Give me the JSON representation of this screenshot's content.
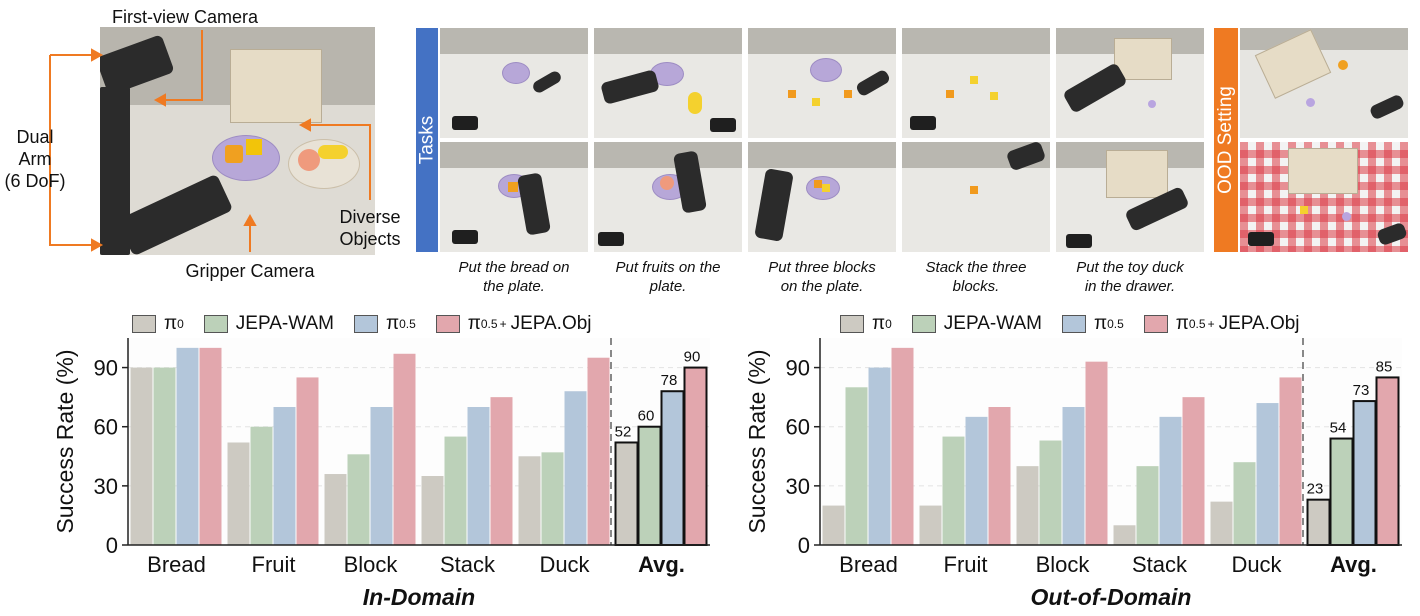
{
  "annotations": {
    "first_view": "First-view Camera",
    "dual_arm": [
      "Dual",
      "Arm",
      "(6 DoF)"
    ],
    "diverse": [
      "Diverse",
      "Objects"
    ],
    "gripper": "Gripper Camera"
  },
  "tags": {
    "tasks": "Tasks",
    "ood": "OOD Setting"
  },
  "captions": [
    [
      "Put the bread on",
      "the plate."
    ],
    [
      "Put fruits on the",
      "plate."
    ],
    [
      "Put three blocks",
      "on the plate."
    ],
    [
      "Stack the three",
      "blocks."
    ],
    [
      "Put the toy duck",
      "in the drawer."
    ]
  ],
  "legend": [
    {
      "label": "π",
      "sub": "0",
      "sup": "",
      "rest": "",
      "color": "#cdcac2"
    },
    {
      "label": "JEPA-WAM",
      "sub": "",
      "sup": "",
      "rest": "",
      "color": "#bcd1b9"
    },
    {
      "label": "π",
      "sub": "0.5",
      "sup": "",
      "rest": "",
      "color": "#b3c6da"
    },
    {
      "label": "π",
      "sub": "0.5",
      "sup": "+",
      "rest": "JEPA.Obj",
      "color": "#e2a7ad"
    }
  ],
  "chart_data": [
    {
      "type": "bar",
      "title": "In-Domain",
      "ylabel": "Success Rate (%)",
      "ylim": [
        0,
        105
      ],
      "yticks": [
        0,
        30,
        60,
        90
      ],
      "categories": [
        "Bread",
        "Fruit",
        "Block",
        "Stack",
        "Duck",
        "Avg."
      ],
      "series": [
        {
          "name": "π0",
          "color": "#cdcac2",
          "values": [
            90,
            52,
            36,
            35,
            45,
            52
          ]
        },
        {
          "name": "JEPA-WAM",
          "color": "#bcd1b9",
          "values": [
            90,
            60,
            46,
            55,
            47,
            60
          ]
        },
        {
          "name": "π0.5",
          "color": "#b3c6da",
          "values": [
            100,
            70,
            70,
            70,
            78,
            78
          ]
        },
        {
          "name": "π0.5 + JEPA.Obj",
          "color": "#e2a7ad",
          "values": [
            100,
            85,
            97,
            75,
            95,
            90
          ]
        }
      ],
      "avg_labels": [
        "52",
        "60",
        "78",
        "90"
      ]
    },
    {
      "type": "bar",
      "title": "Out-of-Domain",
      "ylabel": "Success Rate (%)",
      "ylim": [
        0,
        105
      ],
      "yticks": [
        0,
        30,
        60,
        90
      ],
      "categories": [
        "Bread",
        "Fruit",
        "Block",
        "Stack",
        "Duck",
        "Avg."
      ],
      "series": [
        {
          "name": "π0",
          "color": "#cdcac2",
          "values": [
            20,
            20,
            40,
            10,
            22,
            23
          ]
        },
        {
          "name": "JEPA-WAM",
          "color": "#bcd1b9",
          "values": [
            80,
            55,
            53,
            40,
            42,
            54
          ]
        },
        {
          "name": "π0.5",
          "color": "#b3c6da",
          "values": [
            90,
            65,
            70,
            65,
            72,
            73
          ]
        },
        {
          "name": "π0.5 + JEPA.Obj",
          "color": "#e2a7ad",
          "values": [
            100,
            70,
            93,
            75,
            85,
            85
          ]
        }
      ],
      "avg_labels": [
        "23",
        "54",
        "73",
        "85"
      ]
    }
  ]
}
